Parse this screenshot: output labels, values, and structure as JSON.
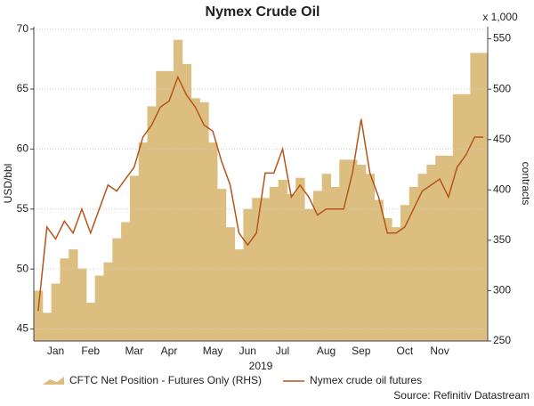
{
  "chart_data": {
    "type": "bar-line",
    "title": "Nymex Crude Oil",
    "xlabel": "2019",
    "ylabel": "USD/bbl",
    "y2label": "contracts",
    "y2unit": "x 1,000",
    "source": "Source: Refinitiv Datastream",
    "categories": [
      null,
      null,
      "Jan",
      null,
      null,
      null,
      "Feb",
      null,
      null,
      null,
      null,
      "Mar",
      null,
      null,
      null,
      "Apr",
      null,
      null,
      null,
      null,
      "May",
      null,
      null,
      null,
      "Jun",
      null,
      null,
      null,
      "Jul",
      null,
      null,
      null,
      null,
      "Aug",
      null,
      null,
      null,
      "Sep",
      null,
      null,
      null,
      null,
      "Oct",
      null,
      null,
      null,
      "Nov",
      null,
      null,
      null,
      null,
      null
    ],
    "series": [
      {
        "name": "CFTC Net Position - Futures Only (RHS)",
        "type": "area",
        "axis": "y2",
        "color": "#dcbf80",
        "values": [
          300,
          278,
          307,
          332,
          341,
          322,
          288,
          315,
          328,
          352,
          368,
          414,
          447,
          483,
          518,
          518,
          549,
          525,
          491,
          487,
          447,
          401,
          363,
          341,
          381,
          392,
          392,
          403,
          410,
          396,
          412,
          381,
          399,
          416,
          403,
          430,
          430,
          425,
          416,
          390,
          372,
          363,
          385,
          403,
          416,
          425,
          434,
          434,
          495,
          495,
          536,
          536
        ]
      },
      {
        "name": "Nymex crude oil futures",
        "type": "line",
        "axis": "y",
        "color": "#b5541b",
        "values": [
          46.5,
          53.5,
          52.5,
          54,
          53,
          55,
          53,
          55,
          57,
          56.5,
          57.5,
          58.5,
          61,
          62,
          63.5,
          64,
          66,
          64.5,
          63.5,
          62,
          61.5,
          59,
          57,
          53,
          52,
          53,
          58,
          58,
          60,
          56,
          57,
          56,
          54.5,
          55,
          55,
          55,
          58,
          62.5,
          58,
          56,
          53,
          53,
          53.5,
          55,
          56.5,
          57,
          57.5,
          56,
          58.5,
          59.5,
          61,
          61
        ]
      }
    ],
    "ylim": [
      44,
      70.2
    ],
    "yticks": [
      45,
      50,
      55,
      60,
      65,
      70
    ],
    "y2lim": [
      250,
      562
    ],
    "y2ticks": [
      250,
      300,
      350,
      400,
      450,
      500,
      550
    ],
    "grid": true
  }
}
